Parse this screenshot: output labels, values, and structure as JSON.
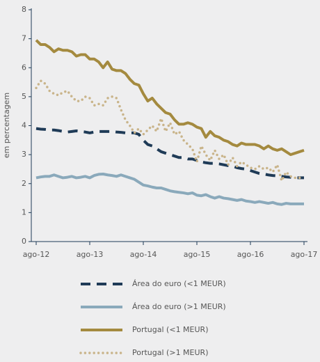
{
  "chart_data": {
    "type": "line",
    "y_label": "em percentagem",
    "categories": [
      "ago-12",
      null,
      null,
      null,
      null,
      null,
      null,
      null,
      null,
      null,
      null,
      null,
      "ago-13",
      null,
      null,
      null,
      null,
      null,
      null,
      null,
      null,
      null,
      null,
      null,
      "ago-14",
      null,
      null,
      null,
      null,
      null,
      null,
      null,
      null,
      null,
      null,
      null,
      "ago-15",
      null,
      null,
      null,
      null,
      null,
      null,
      null,
      null,
      null,
      null,
      null,
      "ago-16",
      null,
      null,
      null,
      null,
      null,
      null,
      null,
      null,
      null,
      null,
      null,
      "ago-17"
    ],
    "ylim": [
      0,
      8
    ],
    "yticks": [
      0,
      1,
      2,
      3,
      4,
      5,
      6,
      7,
      8
    ],
    "series": [
      {
        "name": "Área do euro (<1 MEUR)",
        "color": "#1f3b57",
        "style": "dash",
        "values": [
          3.9,
          3.88,
          3.87,
          3.85,
          3.85,
          3.83,
          3.8,
          3.78,
          3.8,
          3.82,
          3.8,
          3.78,
          3.75,
          3.78,
          3.8,
          3.8,
          3.8,
          3.8,
          3.78,
          3.77,
          3.75,
          3.75,
          3.75,
          3.7,
          3.5,
          3.35,
          3.3,
          3.2,
          3.1,
          3.05,
          3.0,
          2.95,
          2.9,
          2.9,
          2.85,
          2.85,
          2.8,
          2.75,
          2.72,
          2.7,
          2.7,
          2.68,
          2.65,
          2.62,
          2.6,
          2.55,
          2.52,
          2.5,
          2.45,
          2.4,
          2.35,
          2.33,
          2.3,
          2.28,
          2.27,
          2.25,
          2.23,
          2.22,
          2.2,
          2.2,
          2.2
        ]
      },
      {
        "name": "Área do euro (>1 MEUR)",
        "color": "#8aa9bb",
        "style": "solid",
        "values": [
          2.2,
          2.23,
          2.25,
          2.25,
          2.3,
          2.25,
          2.2,
          2.22,
          2.25,
          2.2,
          2.22,
          2.25,
          2.2,
          2.28,
          2.32,
          2.33,
          2.3,
          2.28,
          2.25,
          2.3,
          2.25,
          2.2,
          2.15,
          2.05,
          1.95,
          1.92,
          1.88,
          1.85,
          1.85,
          1.8,
          1.75,
          1.72,
          1.7,
          1.68,
          1.65,
          1.68,
          1.6,
          1.58,
          1.62,
          1.55,
          1.5,
          1.55,
          1.5,
          1.48,
          1.45,
          1.42,
          1.45,
          1.4,
          1.38,
          1.35,
          1.38,
          1.35,
          1.32,
          1.35,
          1.3,
          1.28,
          1.32,
          1.3,
          1.3,
          1.3,
          1.3
        ]
      },
      {
        "name": "Portugal (<1 MEUR)",
        "color": "#a48a3f",
        "style": "solid",
        "values": [
          6.95,
          6.8,
          6.8,
          6.7,
          6.55,
          6.65,
          6.6,
          6.6,
          6.55,
          6.4,
          6.45,
          6.45,
          6.3,
          6.3,
          6.2,
          6.0,
          6.2,
          5.95,
          5.9,
          5.9,
          5.8,
          5.6,
          5.45,
          5.4,
          5.1,
          4.85,
          4.95,
          4.75,
          4.6,
          4.45,
          4.4,
          4.2,
          4.05,
          4.05,
          4.1,
          4.05,
          3.95,
          3.9,
          3.6,
          3.8,
          3.65,
          3.6,
          3.5,
          3.45,
          3.35,
          3.3,
          3.4,
          3.35,
          3.35,
          3.35,
          3.3,
          3.2,
          3.3,
          3.2,
          3.15,
          3.2,
          3.1,
          3.0,
          3.05,
          3.1,
          3.15
        ]
      },
      {
        "name": "Portugal (>1 MEUR)",
        "color": "#c9b48a",
        "style": "dot",
        "values": [
          5.3,
          5.55,
          5.45,
          5.2,
          5.1,
          5.05,
          5.15,
          5.2,
          5.0,
          4.85,
          4.85,
          5.0,
          4.95,
          4.7,
          4.75,
          4.7,
          4.95,
          5.0,
          4.95,
          4.55,
          4.2,
          4.0,
          3.75,
          3.9,
          3.7,
          3.85,
          4.0,
          3.8,
          4.25,
          3.8,
          4.1,
          3.7,
          3.8,
          3.5,
          3.35,
          3.2,
          2.75,
          3.3,
          3.0,
          2.8,
          3.15,
          2.85,
          3.0,
          2.65,
          2.9,
          2.6,
          2.75,
          2.65,
          2.55,
          2.5,
          2.6,
          2.5,
          2.55,
          2.4,
          2.65,
          2.1,
          2.4,
          2.25,
          2.2,
          2.2,
          2.2
        ]
      }
    ]
  }
}
